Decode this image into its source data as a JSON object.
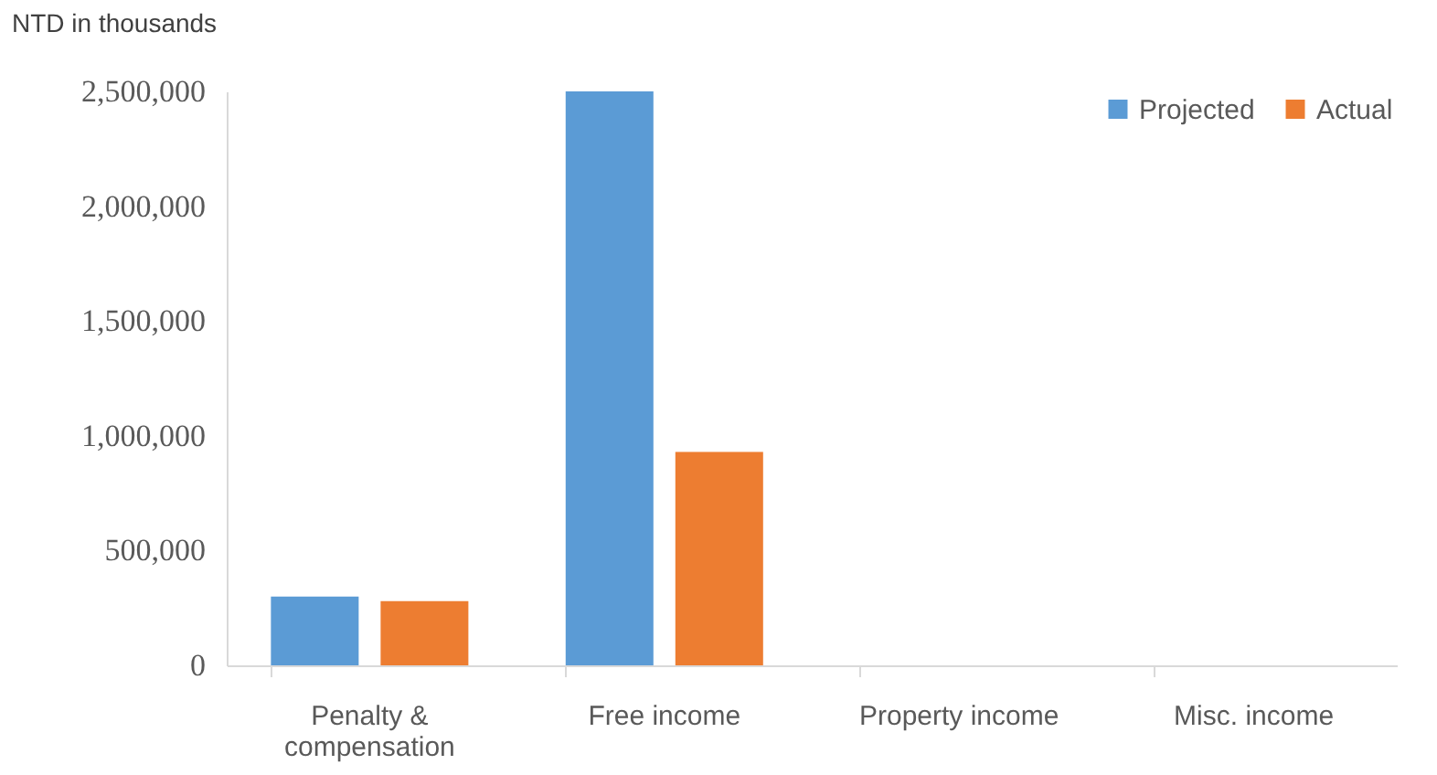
{
  "chart_data": {
    "type": "bar",
    "ylabel": "NTD in thousands",
    "categories": [
      "Penalty & compensation",
      "Free income",
      "Property income",
      "Misc. income"
    ],
    "series": [
      {
        "name": "Projected",
        "color": "#5b9bd5",
        "values": [
          300000,
          2500000,
          0,
          0
        ]
      },
      {
        "name": "Actual",
        "color": "#ed7d31",
        "values": [
          280000,
          930000,
          0,
          0
        ]
      }
    ],
    "ylim": [
      0,
      2500000
    ],
    "yticks": [
      0,
      {
        "value": 500000,
        "label": "500,000"
      },
      {
        "value": 1000000,
        "label": "1,000,000"
      },
      {
        "value": 1500000,
        "label": "1,500,000"
      },
      {
        "value": 2000000,
        "label": "2,000,000"
      },
      {
        "value": 2500000,
        "label": "2,500,000"
      }
    ],
    "grid": false,
    "legend": "top right"
  }
}
